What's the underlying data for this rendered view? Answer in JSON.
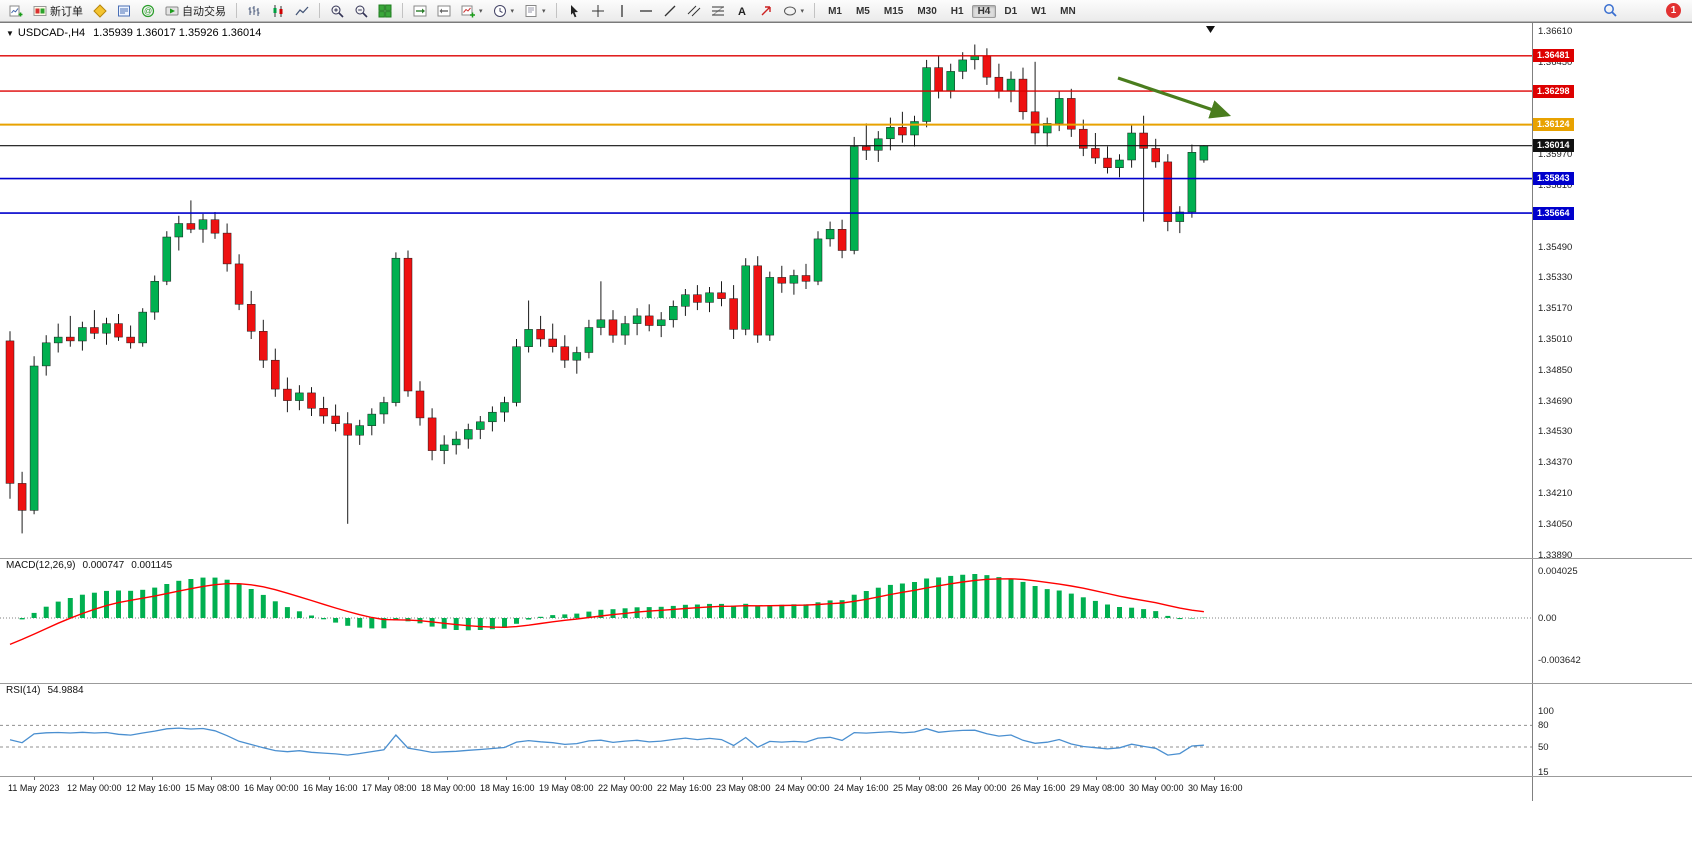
{
  "toolbar": {
    "new_order_label": "新订单",
    "auto_trading_label": "自动交易",
    "timeframes": [
      "M1",
      "M5",
      "M15",
      "M30",
      "H1",
      "H4",
      "D1",
      "W1",
      "MN"
    ],
    "active_timeframe": "H4",
    "notification_count": "1",
    "icons": [
      "new-chart",
      "new-order",
      "metaeditor",
      "market-watch",
      "experts",
      "auto-trading",
      "bars-chart",
      "candlestick-chart",
      "line-chart",
      "zoom-in",
      "zoom-out",
      "tile-windows",
      "auto-scroll",
      "chart-shift",
      "indicators",
      "periods-clock",
      "templates",
      "cursor",
      "crosshair",
      "vertical-line",
      "horizontal-line",
      "trendline",
      "channel",
      "fibonacci",
      "text-tool",
      "arrows-tool",
      "shapes-tool",
      "search",
      "notification"
    ]
  },
  "icons": {
    "chart_menu": "▼",
    "dropdown_caret": "▾"
  },
  "chart": {
    "title": "USDCAD-,H4",
    "ohlc_line": "1.35939 1.36017 1.35926 1.36014"
  },
  "chart_data": {
    "type": "candlestick",
    "symbol": "USDCAD",
    "timeframe": "H4",
    "current": {
      "open": 1.35939,
      "high": 1.36017,
      "low": 1.35926,
      "close": 1.36014
    },
    "colors": {
      "up": "#00b050",
      "down": "#ee1111",
      "wick": "#1a1a1a",
      "macd_hist": "#00b050",
      "macd_signal": "#ff0000",
      "rsi_line": "#4a8fd0",
      "arrow": "#4a7d1e"
    },
    "price_axis": {
      "top_price": 1.3661,
      "step": 0.0016,
      "labels": [
        "1.36610",
        "1.36450",
        "1.36290",
        "1.36130",
        "1.35970",
        "1.35810",
        "1.35650",
        "1.35490",
        "1.35330",
        "1.35170",
        "1.35010",
        "1.34850",
        "1.34690",
        "1.34530",
        "1.34370",
        "1.34210",
        "1.34050",
        "1.33890"
      ]
    },
    "levels": [
      {
        "price": 1.36481,
        "label": "1.36481",
        "color": "#dd0000",
        "width": 1.4,
        "kind": "resistance"
      },
      {
        "price": 1.36298,
        "label": "1.36298",
        "color": "#dd0000",
        "width": 1.4,
        "kind": "resistance"
      },
      {
        "price": 1.36124,
        "label": "1.36124",
        "color": "#e8a200",
        "width": 2,
        "kind": "pivot"
      },
      {
        "price": 1.36014,
        "label": "1.36014",
        "color": "#111111",
        "width": 1.2,
        "kind": "current-price"
      },
      {
        "price": 1.35843,
        "label": "1.35843",
        "color": "#0000cc",
        "width": 1.6,
        "kind": "support"
      },
      {
        "price": 1.35664,
        "label": "1.35664",
        "color": "#0000cc",
        "width": 1.6,
        "kind": "support"
      }
    ],
    "arrow": {
      "from": [
        1118,
        55
      ],
      "to": [
        1228,
        92
      ],
      "color": "#4a7d1e"
    },
    "candles": [
      [
        1.35,
        1.3505,
        1.3418,
        1.3426
      ],
      [
        1.3426,
        1.3432,
        1.34,
        1.3412
      ],
      [
        1.3412,
        1.3492,
        1.341,
        1.3487
      ],
      [
        1.3487,
        1.3503,
        1.3482,
        1.3499
      ],
      [
        1.3499,
        1.3509,
        1.3494,
        1.3502
      ],
      [
        1.3502,
        1.3513,
        1.3497,
        1.35
      ],
      [
        1.35,
        1.351,
        1.3495,
        1.3507
      ],
      [
        1.3507,
        1.3516,
        1.3501,
        1.3504
      ],
      [
        1.3504,
        1.3512,
        1.3498,
        1.3509
      ],
      [
        1.3509,
        1.3514,
        1.35,
        1.3502
      ],
      [
        1.3502,
        1.3508,
        1.3496,
        1.3499
      ],
      [
        1.3499,
        1.3517,
        1.3497,
        1.3515
      ],
      [
        1.3515,
        1.3534,
        1.3511,
        1.3531
      ],
      [
        1.3531,
        1.3557,
        1.3529,
        1.3554
      ],
      [
        1.3554,
        1.3565,
        1.3547,
        1.3561
      ],
      [
        1.3561,
        1.3573,
        1.3556,
        1.3558
      ],
      [
        1.3558,
        1.3566,
        1.3551,
        1.3563
      ],
      [
        1.3563,
        1.3567,
        1.3553,
        1.3556
      ],
      [
        1.3556,
        1.3561,
        1.3536,
        1.354
      ],
      [
        1.354,
        1.3545,
        1.3516,
        1.3519
      ],
      [
        1.3519,
        1.3526,
        1.3501,
        1.3505
      ],
      [
        1.3505,
        1.3511,
        1.3486,
        1.349
      ],
      [
        1.349,
        1.3496,
        1.3471,
        1.3475
      ],
      [
        1.3475,
        1.3481,
        1.3463,
        1.3469
      ],
      [
        1.3469,
        1.3477,
        1.3464,
        1.3473
      ],
      [
        1.3473,
        1.3476,
        1.3461,
        1.3465
      ],
      [
        1.3465,
        1.3471,
        1.3457,
        1.3461
      ],
      [
        1.3461,
        1.3467,
        1.3453,
        1.3457
      ],
      [
        1.3457,
        1.3463,
        1.3405,
        1.3451
      ],
      [
        1.3451,
        1.3459,
        1.3446,
        1.3456
      ],
      [
        1.3456,
        1.3465,
        1.3451,
        1.3462
      ],
      [
        1.3462,
        1.3471,
        1.3457,
        1.3468
      ],
      [
        1.3468,
        1.3546,
        1.3466,
        1.3543
      ],
      [
        1.3543,
        1.3547,
        1.3471,
        1.3474
      ],
      [
        1.3474,
        1.3479,
        1.3456,
        1.346
      ],
      [
        1.346,
        1.3465,
        1.3438,
        1.3443
      ],
      [
        1.3443,
        1.3451,
        1.3436,
        1.3446
      ],
      [
        1.3446,
        1.3453,
        1.3441,
        1.3449
      ],
      [
        1.3449,
        1.3457,
        1.3444,
        1.3454
      ],
      [
        1.3454,
        1.3461,
        1.3449,
        1.3458
      ],
      [
        1.3458,
        1.3466,
        1.3453,
        1.3463
      ],
      [
        1.3463,
        1.3471,
        1.3458,
        1.3468
      ],
      [
        1.3468,
        1.3501,
        1.3466,
        1.3497
      ],
      [
        1.3497,
        1.3521,
        1.3494,
        1.3506
      ],
      [
        1.3506,
        1.3513,
        1.3497,
        1.3501
      ],
      [
        1.3501,
        1.3509,
        1.3494,
        1.3497
      ],
      [
        1.3497,
        1.3503,
        1.3486,
        1.349
      ],
      [
        1.349,
        1.3497,
        1.3483,
        1.3494
      ],
      [
        1.3494,
        1.3511,
        1.3491,
        1.3507
      ],
      [
        1.3507,
        1.3531,
        1.3503,
        1.3511
      ],
      [
        1.3511,
        1.3516,
        1.3499,
        1.3503
      ],
      [
        1.3503,
        1.3513,
        1.3498,
        1.3509
      ],
      [
        1.3509,
        1.3517,
        1.3503,
        1.3513
      ],
      [
        1.3513,
        1.3519,
        1.3505,
        1.3508
      ],
      [
        1.3508,
        1.3515,
        1.3502,
        1.3511
      ],
      [
        1.3511,
        1.3521,
        1.3507,
        1.3518
      ],
      [
        1.3518,
        1.3527,
        1.3513,
        1.3524
      ],
      [
        1.3524,
        1.3529,
        1.3516,
        1.352
      ],
      [
        1.352,
        1.3528,
        1.3515,
        1.3525
      ],
      [
        1.3525,
        1.3531,
        1.3518,
        1.3522
      ],
      [
        1.3522,
        1.3529,
        1.3501,
        1.3506
      ],
      [
        1.3506,
        1.3543,
        1.3503,
        1.3539
      ],
      [
        1.3539,
        1.3544,
        1.3499,
        1.3503
      ],
      [
        1.3503,
        1.3536,
        1.35,
        1.3533
      ],
      [
        1.3533,
        1.3539,
        1.3525,
        1.353
      ],
      [
        1.353,
        1.3537,
        1.3524,
        1.3534
      ],
      [
        1.3534,
        1.354,
        1.3527,
        1.3531
      ],
      [
        1.3531,
        1.3557,
        1.3529,
        1.3553
      ],
      [
        1.3553,
        1.3562,
        1.3549,
        1.3558
      ],
      [
        1.3558,
        1.3563,
        1.3543,
        1.3547
      ],
      [
        1.3547,
        1.3606,
        1.3545,
        1.3601
      ],
      [
        1.3601,
        1.3613,
        1.3594,
        1.3599
      ],
      [
        1.3599,
        1.3609,
        1.3593,
        1.3605
      ],
      [
        1.3605,
        1.3616,
        1.3599,
        1.3611
      ],
      [
        1.3611,
        1.3619,
        1.3603,
        1.3607
      ],
      [
        1.3607,
        1.3617,
        1.3601,
        1.3614
      ],
      [
        1.3614,
        1.3646,
        1.3611,
        1.3642
      ],
      [
        1.3642,
        1.3648,
        1.3626,
        1.363
      ],
      [
        1.363,
        1.3644,
        1.3626,
        1.364
      ],
      [
        1.364,
        1.365,
        1.3636,
        1.3646
      ],
      [
        1.3646,
        1.3654,
        1.3641,
        1.3648
      ],
      [
        1.3648,
        1.3652,
        1.3633,
        1.3637
      ],
      [
        1.3637,
        1.3644,
        1.3626,
        1.363
      ],
      [
        1.363,
        1.364,
        1.3624,
        1.3636
      ],
      [
        1.3636,
        1.3642,
        1.3615,
        1.3619
      ],
      [
        1.3619,
        1.3645,
        1.3602,
        1.3608
      ],
      [
        1.3608,
        1.3616,
        1.3601,
        1.3613
      ],
      [
        1.3613,
        1.363,
        1.3609,
        1.3626
      ],
      [
        1.3626,
        1.3631,
        1.3606,
        1.361
      ],
      [
        1.361,
        1.3615,
        1.3596,
        1.36
      ],
      [
        1.36,
        1.3608,
        1.3592,
        1.3595
      ],
      [
        1.3595,
        1.3601,
        1.3587,
        1.359
      ],
      [
        1.359,
        1.3597,
        1.3585,
        1.3594
      ],
      [
        1.3594,
        1.3612,
        1.359,
        1.3608
      ],
      [
        1.3608,
        1.3617,
        1.3562,
        1.36
      ],
      [
        1.36,
        1.3605,
        1.359,
        1.3593
      ],
      [
        1.3593,
        1.3597,
        1.3557,
        1.3562
      ],
      [
        1.3562,
        1.357,
        1.3556,
        1.3567
      ],
      [
        1.3567,
        1.3602,
        1.3564,
        1.3598
      ],
      [
        1.35939,
        1.36017,
        1.35926,
        1.36014
      ]
    ],
    "indicators": {
      "macd": {
        "label": "MACD(12,26,9)",
        "value_main": "0.000747",
        "value_signal": "0.001145",
        "params": [
          12,
          26,
          9
        ],
        "axis_labels": [
          "0.004025",
          "0.00",
          "-0.003642"
        ]
      },
      "rsi": {
        "label": "RSI(14)",
        "value": "54.9884",
        "period": 14,
        "axis_labels": [
          "100",
          "80",
          "50",
          "15"
        ],
        "levels": [
          80,
          50
        ]
      }
    },
    "time_labels": [
      "11 May 2023",
      "12 May 00:00",
      "12 May 16:00",
      "15 May 08:00",
      "16 May 00:00",
      "16 May 16:00",
      "17 May 08:00",
      "18 May 00:00",
      "18 May 16:00",
      "19 May 08:00",
      "22 May 00:00",
      "22 May 16:00",
      "23 May 08:00",
      "24 May 00:00",
      "24 May 16:00",
      "25 May 08:00",
      "26 May 00:00",
      "26 May 16:00",
      "29 May 08:00",
      "30 May 00:00",
      "30 May 16:00"
    ]
  }
}
